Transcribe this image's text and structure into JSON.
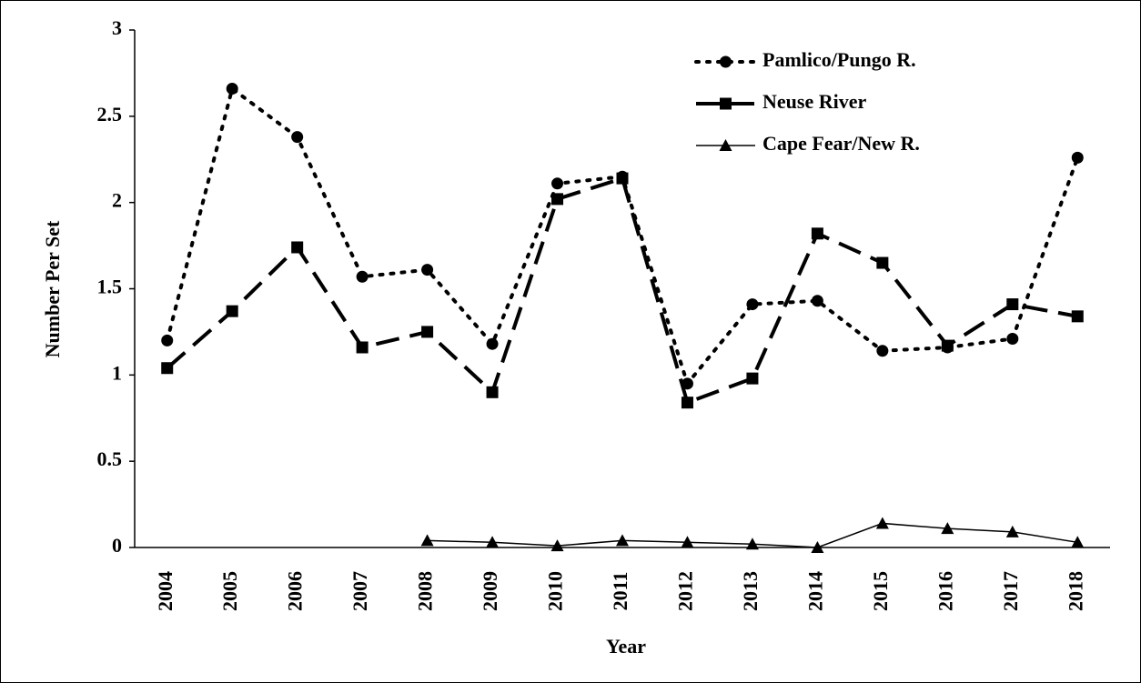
{
  "chart_data": {
    "type": "line",
    "x_label": "Year",
    "y_label": "Number Per Set",
    "categories": [
      "2004",
      "2005",
      "2006",
      "2007",
      "2008",
      "2009",
      "2010",
      "2011",
      "2012",
      "2013",
      "2014",
      "2015",
      "2016",
      "2017",
      "2018"
    ],
    "series": [
      {
        "name": "Pamlico/Pungo R.",
        "color": "#000000",
        "line_style": "dotted",
        "marker": "circle",
        "values": [
          1.2,
          2.66,
          2.38,
          1.57,
          1.61,
          1.18,
          2.11,
          2.15,
          0.95,
          1.41,
          1.43,
          1.14,
          1.16,
          1.21,
          2.26
        ]
      },
      {
        "name": "Neuse River",
        "color": "#000000",
        "line_style": "dashed",
        "marker": "square",
        "values": [
          1.04,
          1.37,
          1.74,
          1.16,
          1.25,
          0.9,
          2.02,
          2.14,
          0.84,
          0.98,
          1.82,
          1.65,
          1.17,
          1.41,
          1.34
        ]
      },
      {
        "name": "Cape Fear/New R.",
        "color": "#000000",
        "line_style": "solid",
        "marker": "triangle",
        "values": [
          null,
          null,
          null,
          null,
          0.04,
          0.03,
          0.01,
          0.04,
          0.03,
          0.02,
          0.0,
          0.14,
          0.11,
          0.09,
          0.03
        ]
      }
    ],
    "ylim": [
      0,
      3
    ],
    "yticks": [
      0,
      0.5,
      1,
      1.5,
      2,
      2.5,
      3
    ],
    "grid": false,
    "legend_position": "top-right"
  }
}
